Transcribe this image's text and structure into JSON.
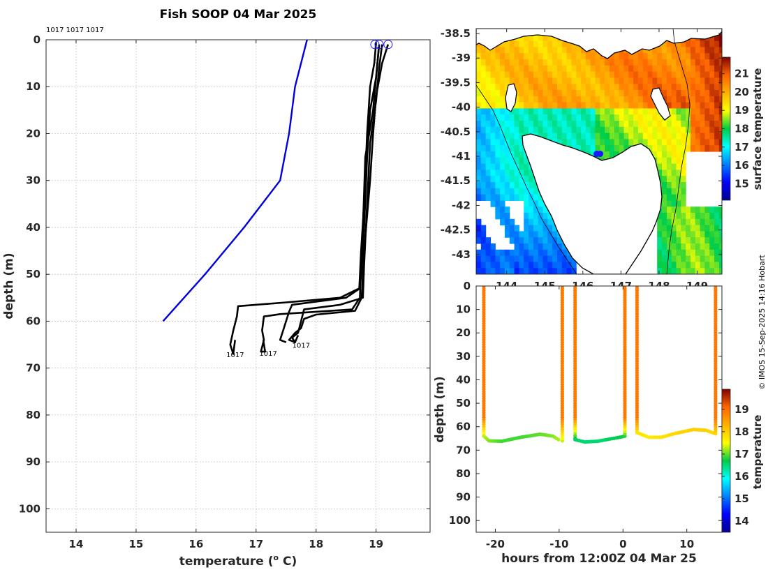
{
  "colors": {
    "profile": "#000000",
    "climatology": "#0000dd",
    "land": "#ffffff",
    "coast": "#000000"
  },
  "chart_data": [
    {
      "type": "line",
      "name": "temperature-depth-profiles",
      "title": "Fish SOOP 04 Mar 2025",
      "xlabel": "temperature (",
      "xlabel_sup": "o",
      "xlabel_end": " C)",
      "ylabel": "depth (m)",
      "xlim": [
        13.5,
        19.9
      ],
      "ylim": [
        0,
        105
      ],
      "xticks": [
        "14",
        "15",
        "16",
        "17",
        "18",
        "19"
      ],
      "yticks": [
        "0",
        "10",
        "20",
        "30",
        "40",
        "50",
        "60",
        "70",
        "80",
        "90",
        "100"
      ],
      "header_ids": "1017 1017 1017",
      "series": [
        {
          "name": "climatology",
          "points": [
            [
              17.85,
              0
            ],
            [
              17.75,
              5
            ],
            [
              17.65,
              10
            ],
            [
              17.6,
              15
            ],
            [
              17.55,
              20
            ],
            [
              17.4,
              30
            ],
            [
              16.8,
              40
            ],
            [
              16.15,
              50
            ],
            [
              15.45,
              60
            ]
          ]
        },
        {
          "name": "profile-1",
          "points": [
            [
              19.0,
              0.5
            ],
            [
              18.97,
              5
            ],
            [
              18.9,
              10
            ],
            [
              18.85,
              20
            ],
            [
              18.8,
              35
            ],
            [
              18.75,
              45
            ],
            [
              18.72,
              53
            ],
            [
              18.4,
              55
            ],
            [
              17.5,
              56
            ],
            [
              16.7,
              56.8
            ],
            [
              16.68,
              59
            ],
            [
              16.62,
              62
            ],
            [
              16.57,
              65
            ],
            [
              16.62,
              67
            ],
            [
              16.65,
              64
            ]
          ]
        },
        {
          "name": "profile-2",
          "points": [
            [
              19.05,
              1
            ],
            [
              19.0,
              8
            ],
            [
              18.95,
              15
            ],
            [
              18.82,
              25
            ],
            [
              18.78,
              40
            ],
            [
              18.74,
              50
            ],
            [
              18.73,
              55
            ],
            [
              18.6,
              57.5
            ],
            [
              17.4,
              58.5
            ],
            [
              17.13,
              59
            ],
            [
              17.1,
              62
            ],
            [
              17.13,
              64
            ],
            [
              17.08,
              66.5
            ],
            [
              17.15,
              66.5
            ],
            [
              17.12,
              64
            ]
          ]
        },
        {
          "name": "profile-3",
          "points": [
            [
              19.2,
              1
            ],
            [
              19.1,
              5
            ],
            [
              19.0,
              12
            ],
            [
              18.95,
              20
            ],
            [
              18.9,
              30
            ],
            [
              18.8,
              45
            ],
            [
              18.76,
              55
            ],
            [
              18.65,
              57.8
            ],
            [
              18.0,
              58.6
            ],
            [
              17.8,
              59.5
            ],
            [
              17.75,
              61.5
            ],
            [
              17.65,
              62.5
            ],
            [
              17.55,
              64
            ],
            [
              17.65,
              64.5
            ],
            [
              17.7,
              63
            ]
          ]
        },
        {
          "name": "profile-4",
          "points": [
            [
              19.05,
              1
            ],
            [
              19.0,
              8
            ],
            [
              18.9,
              15
            ],
            [
              18.85,
              25
            ],
            [
              18.8,
              40
            ],
            [
              18.75,
              50
            ],
            [
              18.73,
              53
            ],
            [
              18.5,
              55
            ],
            [
              17.6,
              56.5
            ],
            [
              17.55,
              58
            ],
            [
              17.45,
              62
            ],
            [
              17.4,
              64
            ],
            [
              17.5,
              64.5
            ]
          ]
        },
        {
          "name": "profile-5",
          "points": [
            [
              19.1,
              1
            ],
            [
              19.05,
              6
            ],
            [
              19.0,
              13
            ],
            [
              18.9,
              22
            ],
            [
              18.85,
              35
            ],
            [
              18.8,
              48
            ],
            [
              18.78,
              55
            ],
            [
              18.4,
              56.5
            ],
            [
              17.8,
              57.5
            ],
            [
              17.75,
              60
            ],
            [
              17.7,
              62.5
            ],
            [
              17.6,
              63.5
            ],
            [
              17.65,
              64.5
            ]
          ]
        }
      ],
      "start_markers": [
        [
          18.98,
          1
        ],
        [
          19.05,
          1
        ],
        [
          19.2,
          1
        ]
      ],
      "end_labels": [
        {
          "text": "1017",
          "x": 16.55,
          "y": 66.5
        },
        {
          "text": "1017",
          "x": 17.1,
          "y": 66.2
        },
        {
          "text": "1017",
          "x": 17.65,
          "y": 64.5
        }
      ]
    },
    {
      "type": "heatmap",
      "name": "sst-map",
      "xlim": [
        143.2,
        149.65
      ],
      "ylim": [
        -43.4,
        -38.4
      ],
      "xticks": [
        "144",
        "145",
        "146",
        "147",
        "148",
        "149"
      ],
      "yticks": [
        "-38.5",
        "-39",
        "-39.5",
        "-40",
        "-40.5",
        "-41",
        "-41.5",
        "-42",
        "-42.5",
        "-43"
      ],
      "colorbar_label": "surface temperature",
      "colorbar_ticks": [
        "15",
        "16",
        "17",
        "18",
        "19",
        "20",
        "21"
      ],
      "colorbar_range": [
        14.1,
        21.9
      ],
      "vessel_position": {
        "lon": 146.4,
        "lat": -40.95
      }
    },
    {
      "type": "scatter",
      "name": "depth-time-section",
      "xlabel": "hours from 12:00Z 04 Mar 25",
      "ylabel": "depth (m)",
      "xlim": [
        -23,
        15.5
      ],
      "ylim": [
        0,
        105
      ],
      "xticks": [
        "-20",
        "-10",
        "0",
        "10"
      ],
      "yticks": [
        "0",
        "10",
        "20",
        "30",
        "40",
        "50",
        "60",
        "70",
        "80",
        "90",
        "100"
      ],
      "colorbar_label": "temperature",
      "colorbar_ticks": [
        "14",
        "15",
        "16",
        "17",
        "18",
        "19"
      ],
      "colorbar_range": [
        13.5,
        19.9
      ],
      "casts": [
        {
          "t_down": -21.8,
          "t_up": -9.5,
          "bottom": [
            [
              -21.8,
              64
            ],
            [
              -21,
              66
            ],
            [
              -19,
              66.2
            ],
            [
              -16,
              64.5
            ],
            [
              -13,
              63.2
            ],
            [
              -11,
              64
            ],
            [
              -9.8,
              66
            ]
          ],
          "bottom_temp": [
            17.3,
            17.1,
            16.9,
            16.9,
            17.0,
            17.1,
            17.3
          ]
        },
        {
          "t_down": -7.5,
          "t_up": 0.3,
          "bottom": [
            [
              -7.5,
              65.5
            ],
            [
              -6,
              66.5
            ],
            [
              -4,
              66.2
            ],
            [
              -2,
              65.2
            ],
            [
              -0.5,
              64.5
            ],
            [
              0.3,
              64
            ]
          ],
          "bottom_temp": [
            16.6,
            16.5,
            16.5,
            16.6,
            16.7,
            16.8
          ]
        },
        {
          "t_down": 2.2,
          "t_up": 14.5,
          "bottom": [
            [
              2.2,
              62.5
            ],
            [
              4,
              64.5
            ],
            [
              6,
              64.5
            ],
            [
              8,
              63
            ],
            [
              11,
              61.2
            ],
            [
              13,
              61.5
            ],
            [
              14.5,
              63
            ]
          ],
          "bottom_temp": [
            17.8,
            17.7,
            17.8,
            17.9,
            18.0,
            18.0,
            17.9
          ]
        }
      ]
    }
  ],
  "watermark": "© IMOS 15-Sep-2025 14:16 Hobart"
}
